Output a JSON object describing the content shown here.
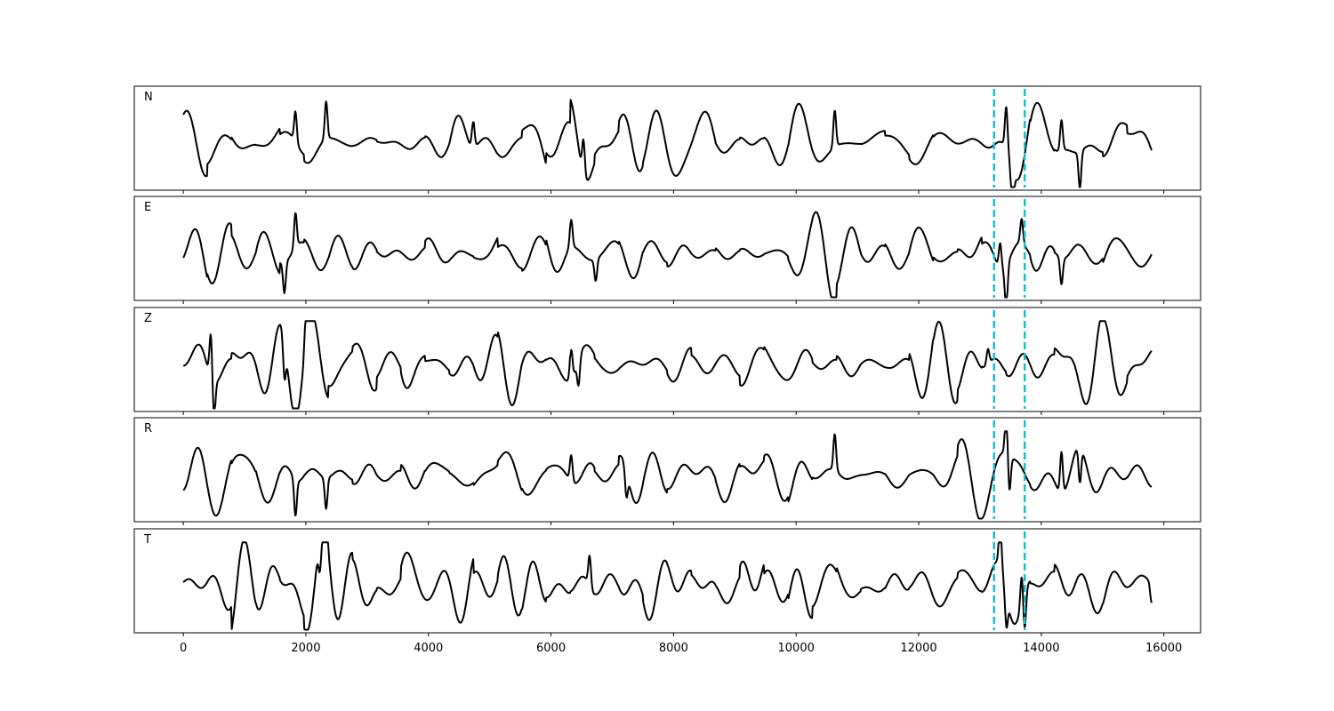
{
  "chart_data": {
    "type": "line",
    "title": "",
    "xlabel": "",
    "ylabel": "",
    "xlim": [
      -800,
      16600
    ],
    "xticks": [
      {
        "value": 0,
        "label": "0"
      },
      {
        "value": 2000,
        "label": "2000"
      },
      {
        "value": 4000,
        "label": "4000"
      },
      {
        "value": 6000,
        "label": "6000"
      },
      {
        "value": 8000,
        "label": "8000"
      },
      {
        "value": 10000,
        "label": "10000"
      },
      {
        "value": 12000,
        "label": "12000"
      },
      {
        "value": 14000,
        "label": "14000"
      },
      {
        "value": 16000,
        "label": "16000"
      }
    ],
    "x_extent": [
      0,
      15800
    ],
    "grid": false,
    "shared_x": true,
    "picks": [
      {
        "x": 13230,
        "color": "#17becf",
        "style": "dashed"
      },
      {
        "x": 13730,
        "color": "#17becf",
        "style": "dashed"
      }
    ],
    "trace_color": "#000000",
    "panels": [
      {
        "label": "N",
        "events": [
          [
            1830,
            0.7
          ],
          [
            2330,
            0.85
          ],
          [
            4730,
            0.6
          ],
          [
            6530,
            0.8
          ],
          [
            10630,
            0.85
          ],
          [
            13430,
            1.0
          ],
          [
            13530,
            -0.9
          ],
          [
            14330,
            0.7
          ],
          [
            14630,
            -0.85
          ]
        ]
      },
      {
        "label": "E",
        "events": [
          [
            1830,
            0.8
          ],
          [
            1650,
            -0.7
          ],
          [
            6330,
            0.65
          ],
          [
            6730,
            -0.5
          ],
          [
            13330,
            0.6
          ],
          [
            13430,
            -1.0
          ],
          [
            13680,
            0.55
          ],
          [
            14330,
            -0.6
          ]
        ]
      },
      {
        "label": "Z",
        "events": [
          [
            450,
            1.0
          ],
          [
            500,
            -0.9
          ],
          [
            1650,
            -0.85
          ],
          [
            2000,
            0.7
          ],
          [
            6330,
            0.75
          ],
          [
            6450,
            -0.6
          ],
          [
            13130,
            0.35
          ]
        ]
      },
      {
        "label": "R",
        "events": [
          [
            1830,
            -0.85
          ],
          [
            2330,
            -0.7
          ],
          [
            6330,
            0.6
          ],
          [
            7230,
            -0.6
          ],
          [
            10630,
            0.85
          ],
          [
            13430,
            1.0
          ],
          [
            13480,
            -0.8
          ],
          [
            14330,
            0.95
          ],
          [
            14630,
            -0.8
          ]
        ]
      },
      {
        "label": "T",
        "events": [
          [
            2330,
            0.85
          ],
          [
            2230,
            -0.7
          ],
          [
            6630,
            0.7
          ],
          [
            13330,
            1.0
          ],
          [
            13430,
            -0.75
          ],
          [
            13680,
            0.7
          ],
          [
            13730,
            -0.85
          ],
          [
            15800,
            -0.45
          ]
        ]
      }
    ]
  }
}
